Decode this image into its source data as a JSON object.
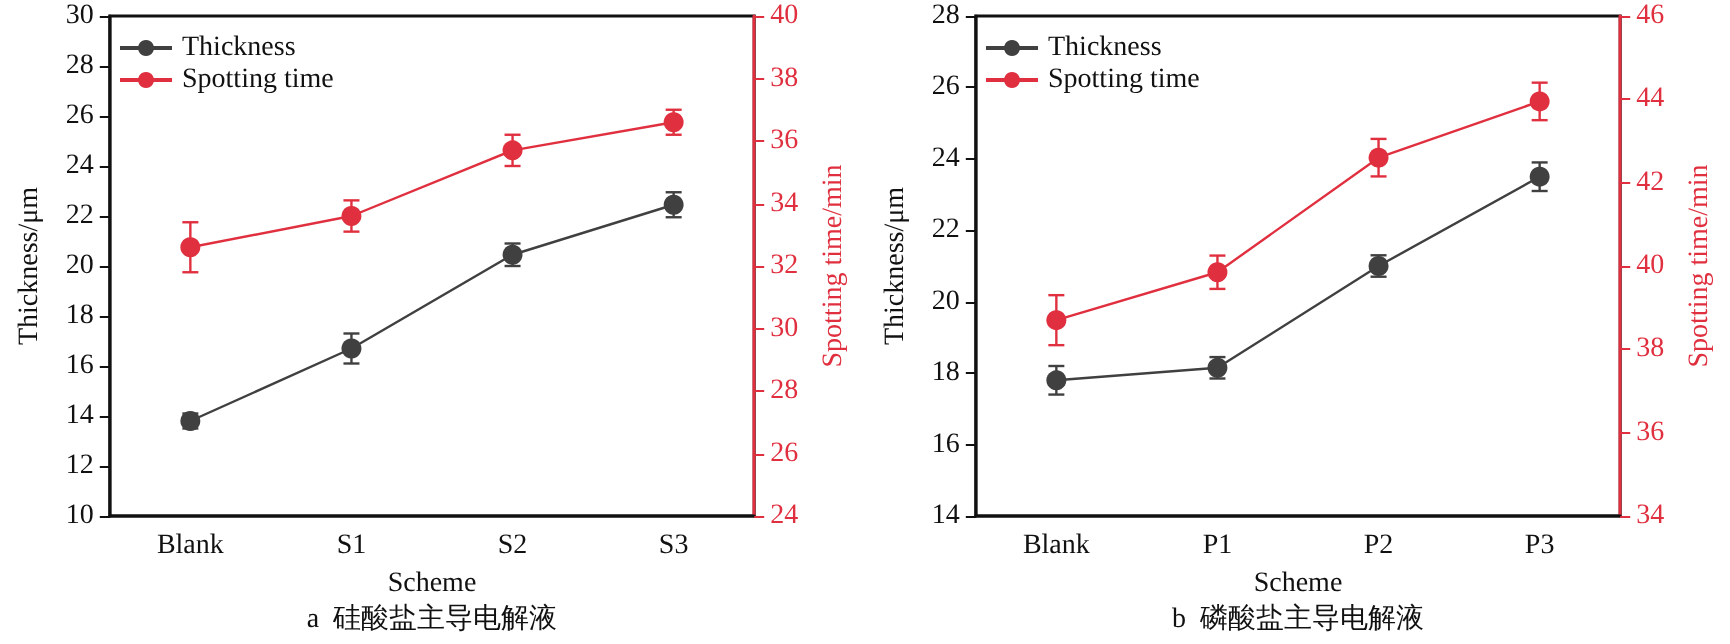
{
  "chart_data": [
    {
      "type": "line",
      "title": "a  硅酸盐主导电解液",
      "xlabel": "Scheme",
      "ylabel": "Thickness/μm",
      "y2label": "Spotting time/min",
      "categories": [
        "Blank",
        "S1",
        "S2",
        "S3"
      ],
      "series": [
        {
          "name": "Thickness",
          "color": "#404040",
          "values": [
            13.8,
            16.7,
            20.45,
            22.45
          ],
          "errors": [
            0.3,
            0.6,
            0.45,
            0.5
          ]
        },
        {
          "name": "Spotting time",
          "color": "#e0303f",
          "axis": "y2",
          "values": [
            32.6,
            33.6,
            35.7,
            36.6
          ],
          "errors": [
            0.8,
            0.5,
            0.5,
            0.4
          ]
        }
      ],
      "ylim": [
        10,
        30
      ],
      "yticks": [
        10,
        12,
        14,
        16,
        18,
        20,
        22,
        24,
        26,
        28,
        30
      ],
      "y2lim": [
        24,
        40
      ],
      "y2ticks": [
        24,
        26,
        28,
        30,
        32,
        34,
        36,
        38,
        40
      ],
      "legend": "top left",
      "marker": "circle",
      "line_style": "solid",
      "grid": false
    },
    {
      "type": "line",
      "title": "b  磷酸盐主导电解液",
      "xlabel": "Scheme",
      "ylabel": "Thickness/μm",
      "y2label": "Spotting time/min",
      "categories": [
        "Blank",
        "P1",
        "P2",
        "P3"
      ],
      "series": [
        {
          "name": "Thickness",
          "color": "#404040",
          "values": [
            17.8,
            18.15,
            21.0,
            23.5
          ],
          "errors": [
            0.4,
            0.3,
            0.3,
            0.4
          ]
        },
        {
          "name": "Spotting time",
          "color": "#e0303f",
          "axis": "y2",
          "values": [
            38.7,
            39.85,
            42.6,
            43.95
          ],
          "errors": [
            0.6,
            0.4,
            0.45,
            0.45
          ]
        }
      ],
      "ylim": [
        14,
        28
      ],
      "yticks": [
        14,
        16,
        18,
        20,
        22,
        24,
        26,
        28
      ],
      "y2lim": [
        34,
        46
      ],
      "y2ticks": [
        34,
        36,
        38,
        40,
        42,
        44,
        46
      ],
      "legend": "top left",
      "marker": "circle",
      "line_style": "solid",
      "grid": false
    }
  ]
}
